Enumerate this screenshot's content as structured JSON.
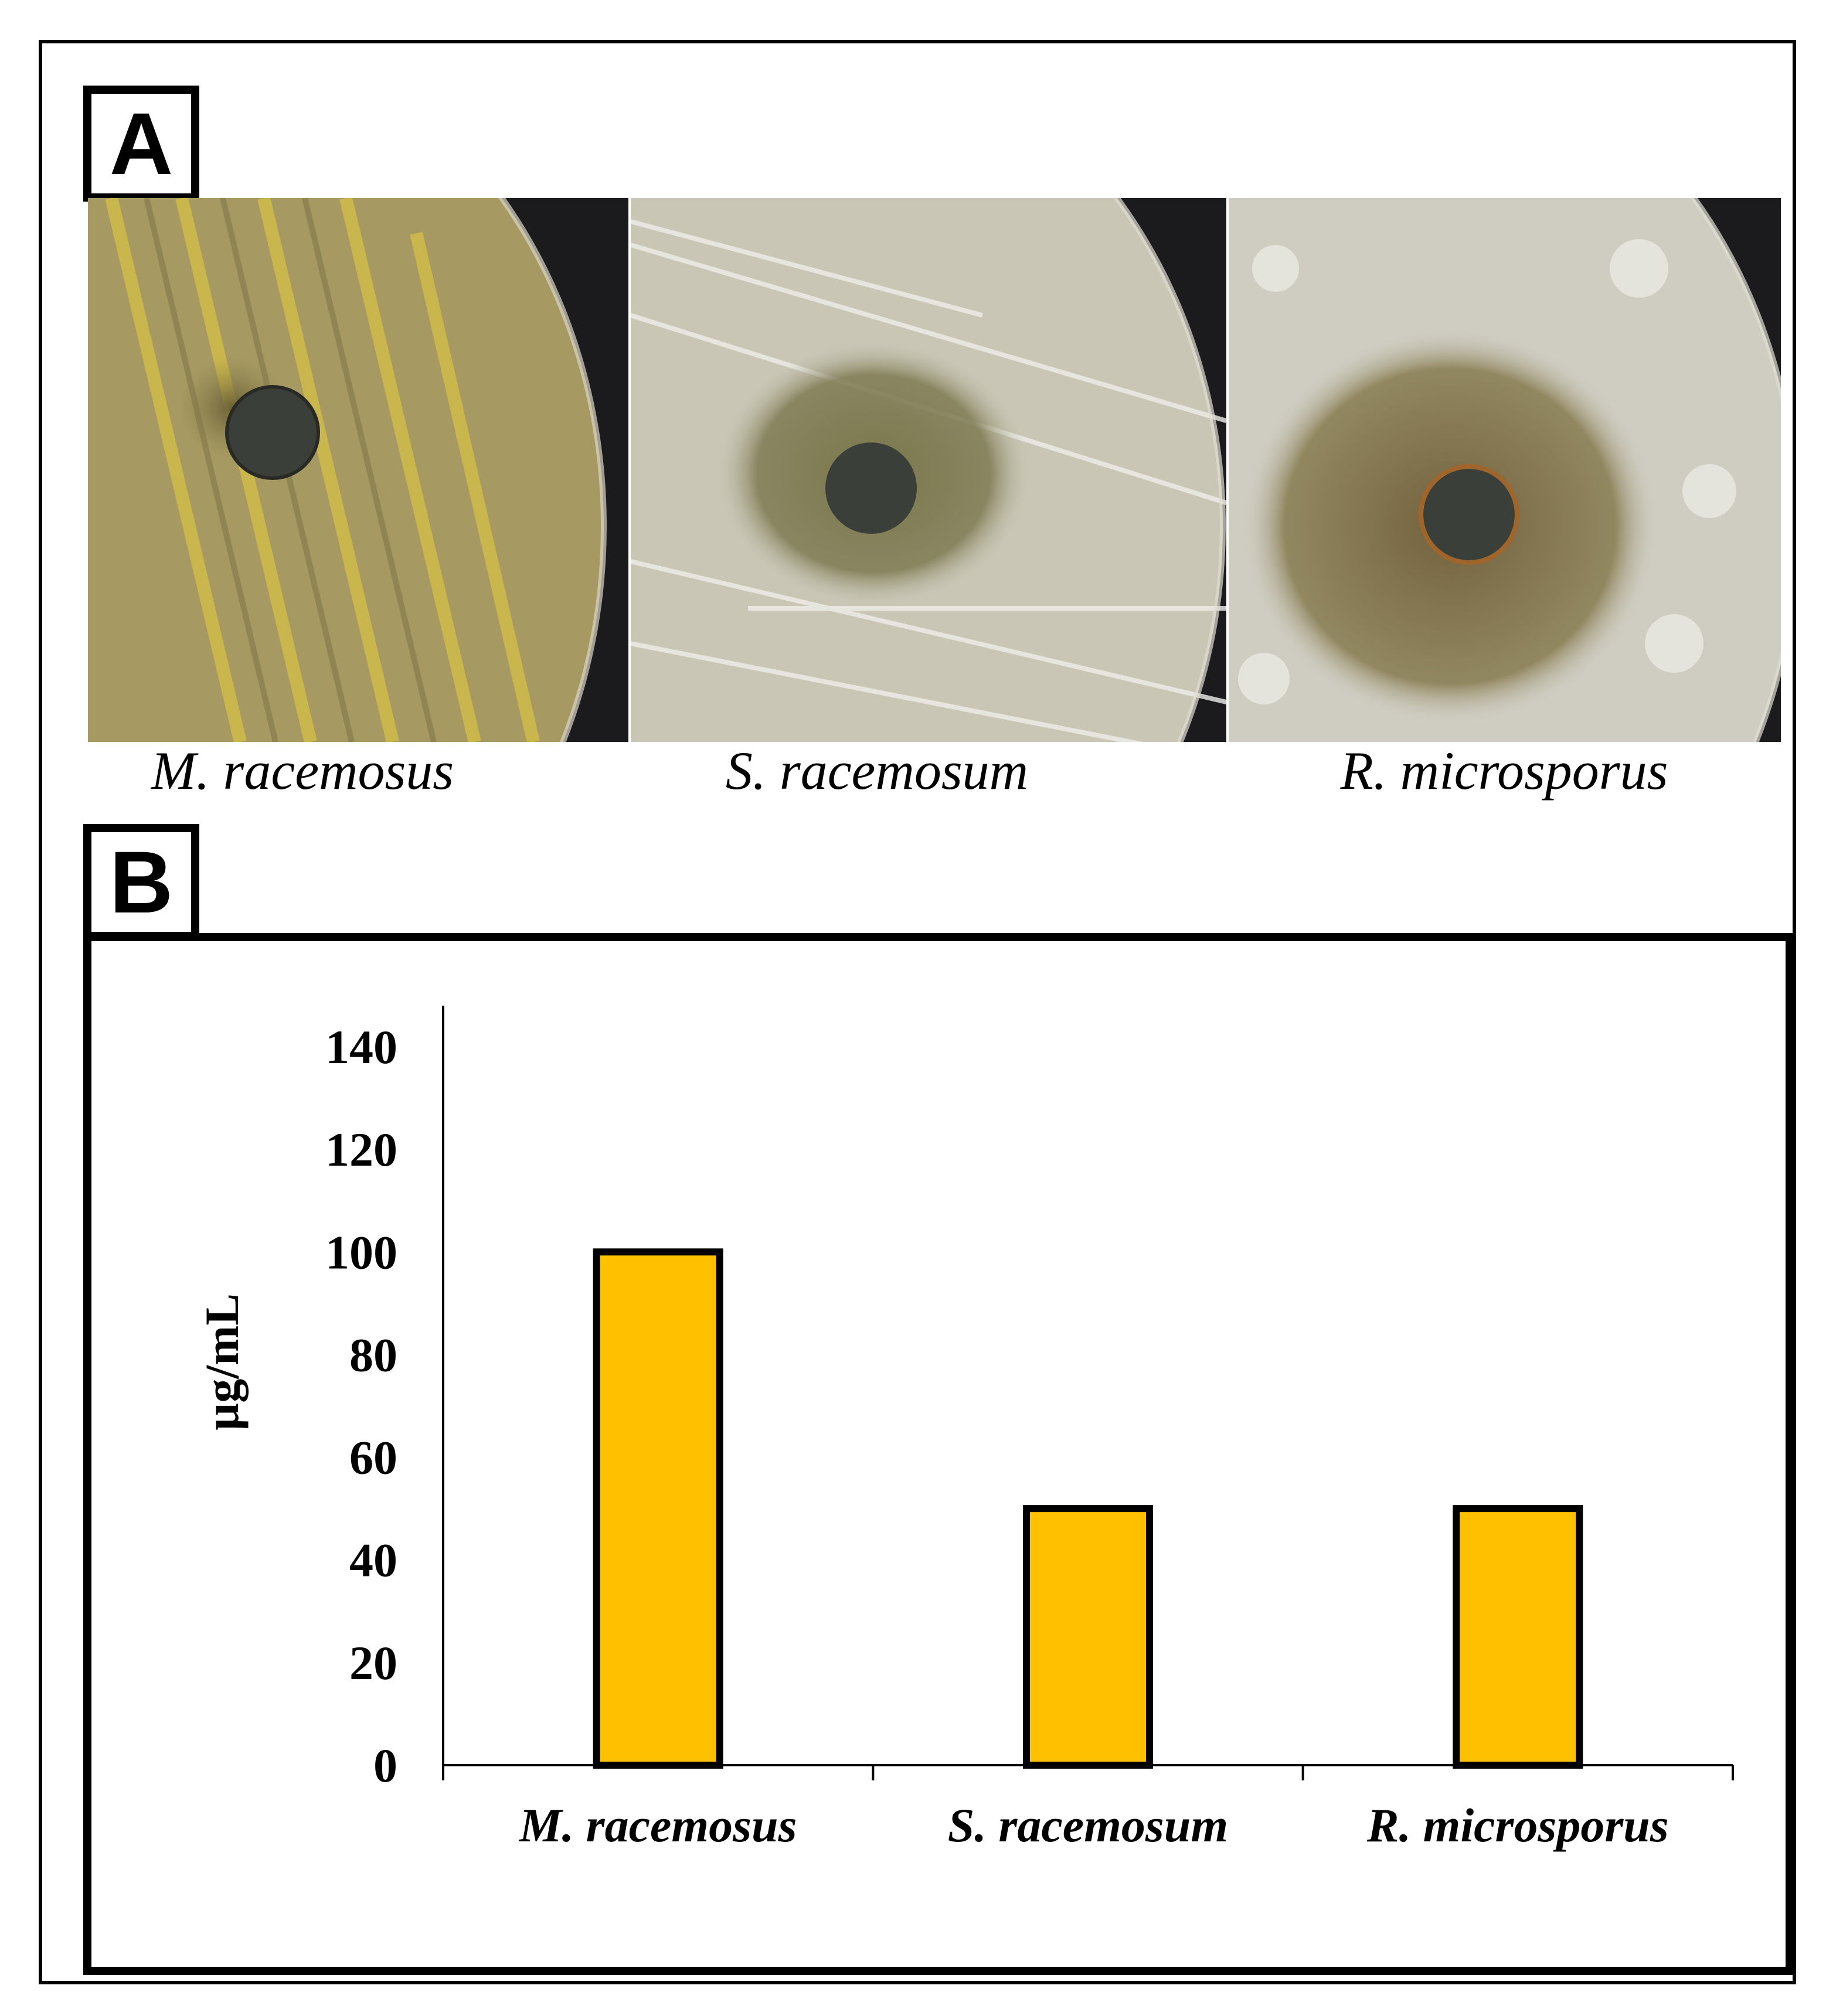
{
  "panel_a": {
    "label": "A",
    "captions": [
      "M. racemosus",
      "S. racemosum",
      "R. microsporus"
    ]
  },
  "panel_b": {
    "label": "B"
  },
  "colors": {
    "bar_fill": "#FFC000",
    "bar_stroke": "#000000"
  },
  "chart_data": {
    "type": "bar",
    "categories": [
      "M. racemosus",
      "S. racemosum",
      "R. microsporus"
    ],
    "values": [
      100,
      50,
      50
    ],
    "title": "",
    "xlabel": "",
    "ylabel": "µg/mL",
    "ylim": [
      0,
      140
    ],
    "yticks": [
      "0",
      "20",
      "40",
      "60",
      "80",
      "100",
      "120",
      "140"
    ],
    "grid": false,
    "legend": "none"
  }
}
